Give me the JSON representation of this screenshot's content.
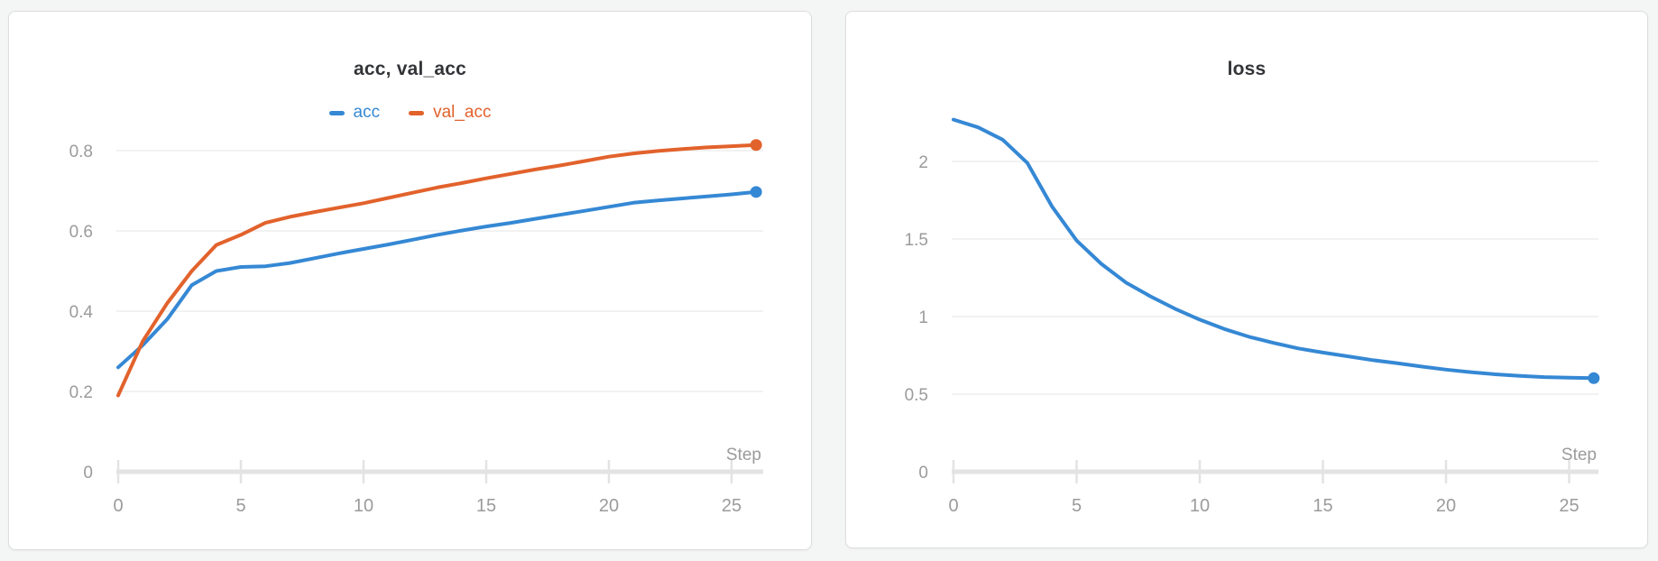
{
  "page": {
    "background_color": "#f4f5f5",
    "panel_background": "#ffffff"
  },
  "axis_style": {
    "label_color": "#9b9b9b",
    "gridline_color": "#ededed",
    "axis_line_color": "#e3e3e3"
  },
  "chart_data": [
    {
      "type": "line",
      "title": "acc, val_acc",
      "xlabel": "Step",
      "ylabel": "",
      "legend_position": "top",
      "grid": "horizontal",
      "x": [
        0,
        1,
        2,
        3,
        4,
        5,
        6,
        7,
        8,
        9,
        10,
        11,
        12,
        13,
        14,
        15,
        16,
        17,
        18,
        19,
        20,
        21,
        22,
        23,
        24,
        25,
        26
      ],
      "xticks": [
        0,
        5,
        10,
        15,
        20,
        25
      ],
      "yticks": [
        0,
        0.2,
        0.4,
        0.6,
        0.8
      ],
      "xlim": [
        0,
        26.3
      ],
      "ylim": [
        0,
        0.86
      ],
      "series": [
        {
          "name": "acc",
          "color": "#3588d4",
          "endpoint_dot": true,
          "values": [
            0.26,
            0.315,
            0.38,
            0.465,
            0.5,
            0.51,
            0.512,
            0.52,
            0.532,
            0.544,
            0.555,
            0.566,
            0.578,
            0.59,
            0.601,
            0.611,
            0.62,
            0.63,
            0.64,
            0.65,
            0.66,
            0.67,
            0.676,
            0.681,
            0.686,
            0.691,
            0.697
          ]
        },
        {
          "name": "val_acc",
          "color": "#e2622c",
          "endpoint_dot": true,
          "values": [
            0.19,
            0.325,
            0.42,
            0.5,
            0.565,
            0.59,
            0.62,
            0.635,
            0.647,
            0.658,
            0.669,
            0.682,
            0.695,
            0.708,
            0.719,
            0.731,
            0.742,
            0.753,
            0.763,
            0.774,
            0.785,
            0.793,
            0.799,
            0.804,
            0.808,
            0.811,
            0.814
          ]
        }
      ]
    },
    {
      "type": "line",
      "title": "loss",
      "xlabel": "Step",
      "ylabel": "",
      "legend_position": "none",
      "grid": "horizontal",
      "x": [
        0,
        1,
        2,
        3,
        4,
        5,
        6,
        7,
        8,
        9,
        10,
        11,
        12,
        13,
        14,
        15,
        16,
        17,
        18,
        19,
        20,
        21,
        22,
        23,
        24,
        25,
        26
      ],
      "xticks": [
        0,
        5,
        10,
        15,
        20,
        25
      ],
      "yticks": [
        0,
        0.5,
        1,
        1.5,
        2
      ],
      "xlim": [
        0,
        26.3
      ],
      "ylim": [
        0,
        2.33
      ],
      "series": [
        {
          "name": "loss",
          "color": "#3588d4",
          "endpoint_dot": true,
          "values": [
            2.27,
            2.22,
            2.14,
            1.99,
            1.71,
            1.49,
            1.34,
            1.22,
            1.13,
            1.05,
            0.98,
            0.92,
            0.87,
            0.83,
            0.795,
            0.768,
            0.744,
            0.72,
            0.7,
            0.678,
            0.658,
            0.642,
            0.628,
            0.618,
            0.61,
            0.606,
            0.603
          ]
        }
      ]
    }
  ]
}
